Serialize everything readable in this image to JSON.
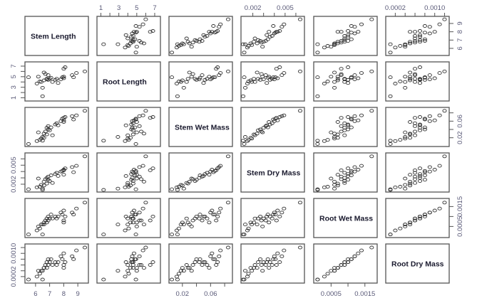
{
  "chart_data": {
    "type": "scatter",
    "subtype": "scatterplot-matrix",
    "title": "",
    "variables": [
      "Stem Length",
      "Root Length",
      "Stem Wet Mass",
      "Stem Dry Mass",
      "Root Wet Mass",
      "Root Dry Mass"
    ],
    "ranges": {
      "Stem Length": [
        5.4,
        9.6
      ],
      "Root Length": [
        0.8,
        7.4
      ],
      "Stem Wet Mass": [
        0.004,
        0.088
      ],
      "Stem Dry Mass": [
        0.0011,
        0.0066
      ],
      "Root Wet Mass": [
        5e-05,
        0.0018
      ],
      "Root Dry Mass": [
        5e-05,
        0.00125
      ]
    },
    "axes": {
      "top": [
        {
          "column": 1,
          "ticks": [
            1,
            2,
            3,
            4,
            5,
            6,
            7
          ],
          "labels": [
            "1",
            "3",
            "5",
            "7"
          ],
          "label_values": [
            1,
            3,
            5,
            7
          ]
        },
        {
          "column": 3,
          "ticks": [
            0.002,
            0.003,
            0.004,
            0.005,
            0.006
          ],
          "labels": [
            "0.002",
            "0.005"
          ],
          "label_values": [
            0.002,
            0.005
          ]
        },
        {
          "column": 5,
          "ticks": [
            0.0002,
            0.0004,
            0.0006,
            0.0008,
            0.001,
            0.0012
          ],
          "labels": [
            "0.0002",
            "0.0010"
          ],
          "label_values": [
            0.0002,
            0.001
          ]
        }
      ],
      "right": [
        {
          "row": 0,
          "ticks": [
            6,
            7,
            8,
            9
          ],
          "labels": [
            "6",
            "7",
            "8",
            "9"
          ],
          "label_values": [
            6,
            7,
            8,
            9
          ]
        },
        {
          "row": 2,
          "ticks": [
            0.02,
            0.04,
            0.06,
            0.08
          ],
          "labels": [
            "0.02",
            "0.06"
          ],
          "label_values": [
            0.02,
            0.06
          ]
        },
        {
          "row": 4,
          "ticks": [
            0.0005,
            0.001,
            0.0015
          ],
          "labels": [
            "0.0005",
            "0.0015"
          ],
          "label_values": [
            0.0005,
            0.0015
          ]
        }
      ],
      "left": [
        {
          "row": 1,
          "ticks": [
            1,
            2,
            3,
            4,
            5,
            6,
            7
          ],
          "labels": [
            "1",
            "3",
            "5",
            "7"
          ],
          "label_values": [
            1,
            3,
            5,
            7
          ]
        },
        {
          "row": 3,
          "ticks": [
            0.002,
            0.003,
            0.004,
            0.005,
            0.006
          ],
          "labels": [
            "0.002",
            "0.005"
          ],
          "label_values": [
            0.002,
            0.005
          ]
        },
        {
          "row": 5,
          "ticks": [
            0.0002,
            0.0004,
            0.0006,
            0.0008,
            0.001,
            0.0012
          ],
          "labels": [
            "0.0002",
            "0.0010"
          ],
          "label_values": [
            0.0002,
            0.001
          ]
        }
      ],
      "bottom": [
        {
          "column": 0,
          "ticks": [
            6,
            7,
            8,
            9
          ],
          "labels": [
            "6",
            "7",
            "8",
            "9"
          ],
          "label_values": [
            6,
            7,
            8,
            9
          ]
        },
        {
          "column": 2,
          "ticks": [
            0.02,
            0.04,
            0.06,
            0.08
          ],
          "labels": [
            "0.02",
            "0.06"
          ],
          "label_values": [
            0.02,
            0.06
          ]
        },
        {
          "column": 4,
          "ticks": [
            0.0005,
            0.001,
            0.0015
          ],
          "labels": [
            "0.0005",
            "0.0015"
          ],
          "label_values": [
            0.0005,
            0.0015
          ]
        }
      ]
    },
    "observations": [
      [
        5.5,
        4.9,
        0.005,
        0.0012,
        0.0001,
        0.0001
      ],
      [
        6.1,
        3.7,
        0.012,
        0.0015,
        0.0003,
        0.0002
      ],
      [
        6.3,
        4.1,
        0.015,
        0.0016,
        0.0004,
        0.0003
      ],
      [
        6.5,
        2.9,
        0.022,
        0.0013,
        0.0006,
        0.0004
      ],
      [
        6.6,
        4.3,
        0.02,
        0.0018,
        0.0007,
        0.0005
      ],
      [
        6.6,
        5.8,
        0.03,
        0.0024,
        0.0006,
        0.0005
      ],
      [
        6.7,
        5.5,
        0.035,
        0.0028,
        0.0008,
        0.0006
      ],
      [
        6.8,
        4.6,
        0.028,
        0.0021,
        0.0007,
        0.0005
      ],
      [
        6.8,
        4.5,
        0.044,
        0.003,
        0.0009,
        0.0007
      ],
      [
        6.9,
        5.3,
        0.048,
        0.0032,
        0.0008,
        0.0006
      ],
      [
        6.9,
        4.4,
        0.04,
        0.0027,
        0.001,
        0.0008
      ],
      [
        7.0,
        4.6,
        0.038,
        0.0025,
        0.0009,
        0.0007
      ],
      [
        7.1,
        4.8,
        0.045,
        0.0034,
        0.0011,
        0.0008
      ],
      [
        6.5,
        1.3,
        0.013,
        0.0011,
        0.0001,
        0.0001
      ],
      [
        7.4,
        4.4,
        0.052,
        0.0036,
        0.001,
        0.0007
      ],
      [
        7.5,
        4.6,
        0.055,
        0.0038,
        0.0009,
        0.0006
      ],
      [
        7.8,
        4.5,
        0.06,
        0.004,
        0.0012,
        0.0009
      ],
      [
        7.9,
        4.9,
        0.066,
        0.0041,
        0.0011,
        0.0008
      ],
      [
        8.0,
        4.7,
        0.062,
        0.0043,
        0.0013,
        0.001
      ],
      [
        8.0,
        5.0,
        0.058,
        0.0035,
        0.0007,
        0.0005
      ],
      [
        8.1,
        6.8,
        0.07,
        0.0045,
        0.001,
        0.0007
      ],
      [
        8.0,
        6.5,
        0.068,
        0.0042,
        0.0008,
        0.0006
      ],
      [
        8.6,
        5.3,
        0.072,
        0.0047,
        0.0012,
        0.0009
      ],
      [
        8.7,
        4.9,
        0.064,
        0.0039,
        0.0011,
        0.0008
      ],
      [
        8.9,
        5.7,
        0.074,
        0.0049,
        0.0014,
        0.0011
      ],
      [
        6.2,
        5.0,
        0.033,
        0.0029,
        0.0005,
        0.0004
      ],
      [
        7.2,
        4.0,
        0.026,
        0.0022,
        0.0009,
        0.0006
      ],
      [
        6.4,
        4.0,
        0.018,
        0.0019,
        0.0006,
        0.0004
      ],
      [
        7.6,
        3.8,
        0.05,
        0.0033,
        0.001,
        0.0007
      ],
      [
        9.5,
        6.0,
        0.085,
        0.0064,
        0.0017,
        0.0012
      ]
    ]
  }
}
